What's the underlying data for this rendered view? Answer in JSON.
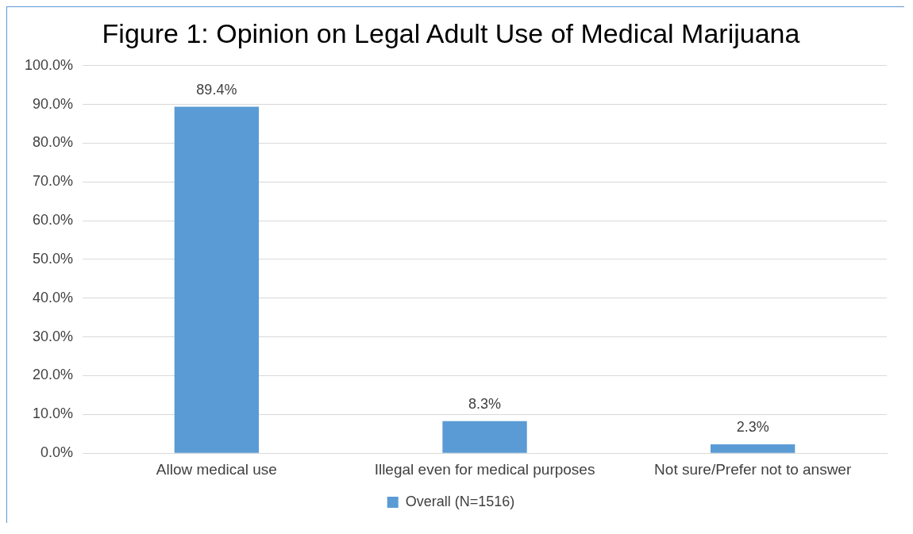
{
  "chart_data": {
    "type": "bar",
    "title": "Figure 1: Opinion on Legal Adult Use of Medical Marijuana",
    "categories": [
      "Allow medical use",
      "Illegal even for medical purposes",
      "Not sure/Prefer not to answer"
    ],
    "series": [
      {
        "name": "Overall (N=1516)",
        "color": "#5b9bd5",
        "values": [
          89.4,
          8.3,
          2.3
        ],
        "value_labels": [
          "89.4%",
          "8.3%",
          "2.3%"
        ]
      }
    ],
    "ylim": [
      0,
      100
    ],
    "yticks": [
      {
        "value": 0,
        "label": "0.0%"
      },
      {
        "value": 10,
        "label": "10.0%"
      },
      {
        "value": 20,
        "label": "20.0%"
      },
      {
        "value": 30,
        "label": "30.0%"
      },
      {
        "value": 40,
        "label": "40.0%"
      },
      {
        "value": 50,
        "label": "50.0%"
      },
      {
        "value": 60,
        "label": "60.0%"
      },
      {
        "value": 70,
        "label": "70.0%"
      },
      {
        "value": 80,
        "label": "80.0%"
      },
      {
        "value": 90,
        "label": "90.0%"
      },
      {
        "value": 100,
        "label": "100.0%"
      }
    ],
    "grid": "y",
    "legend": "bottom"
  }
}
